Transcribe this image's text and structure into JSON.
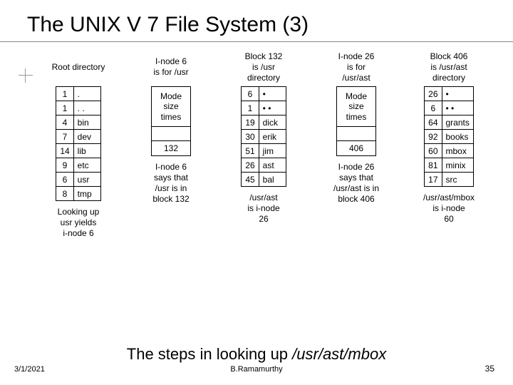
{
  "title": "The UNIX V 7 File System (3)",
  "columns": [
    {
      "title": "Root directory",
      "type": "dir",
      "rows": [
        [
          "1",
          "."
        ],
        [
          "1",
          ". ."
        ],
        [
          "4",
          "bin"
        ],
        [
          "7",
          "dev"
        ],
        [
          "14",
          "lib"
        ],
        [
          "9",
          "etc"
        ],
        [
          "6",
          "usr"
        ],
        [
          "8",
          "tmp"
        ]
      ],
      "footer": "Looking up\nusr yields\ni-node 6"
    },
    {
      "title": "I-node 6\nis for /usr",
      "type": "inode",
      "mode": "Mode\nsize\ntimes",
      "val": "132",
      "footer": "I-node 6\nsays that\n/usr is in\nblock 132"
    },
    {
      "title": "Block 132\nis /usr\ndirectory",
      "type": "dir",
      "rows": [
        [
          "6",
          "•"
        ],
        [
          "1",
          "• •"
        ],
        [
          "19",
          "dick"
        ],
        [
          "30",
          "erik"
        ],
        [
          "51",
          "jim"
        ],
        [
          "26",
          "ast"
        ],
        [
          "45",
          "bal"
        ]
      ],
      "footer": "/usr/ast\nis i-node\n26"
    },
    {
      "title": "I-node 26\nis for\n/usr/ast",
      "type": "inode",
      "mode": "Mode\nsize\ntimes",
      "val": "406",
      "footer": "I-node 26\nsays that\n/usr/ast is in\nblock 406"
    },
    {
      "title": "Block 406\nis /usr/ast\ndirectory",
      "type": "dir",
      "rows": [
        [
          "26",
          "•"
        ],
        [
          "6",
          "• •"
        ],
        [
          "64",
          "grants"
        ],
        [
          "92",
          "books"
        ],
        [
          "60",
          "mbox"
        ],
        [
          "81",
          "minix"
        ],
        [
          "17",
          "src"
        ]
      ],
      "footer": "/usr/ast/mbox\nis i-node\n60"
    }
  ],
  "caption_pre": "The steps in looking up ",
  "caption_path": "/usr/ast/mbox",
  "footer_date": "3/1/2021",
  "footer_author": "B.Ramamurthy",
  "footer_page": "35"
}
